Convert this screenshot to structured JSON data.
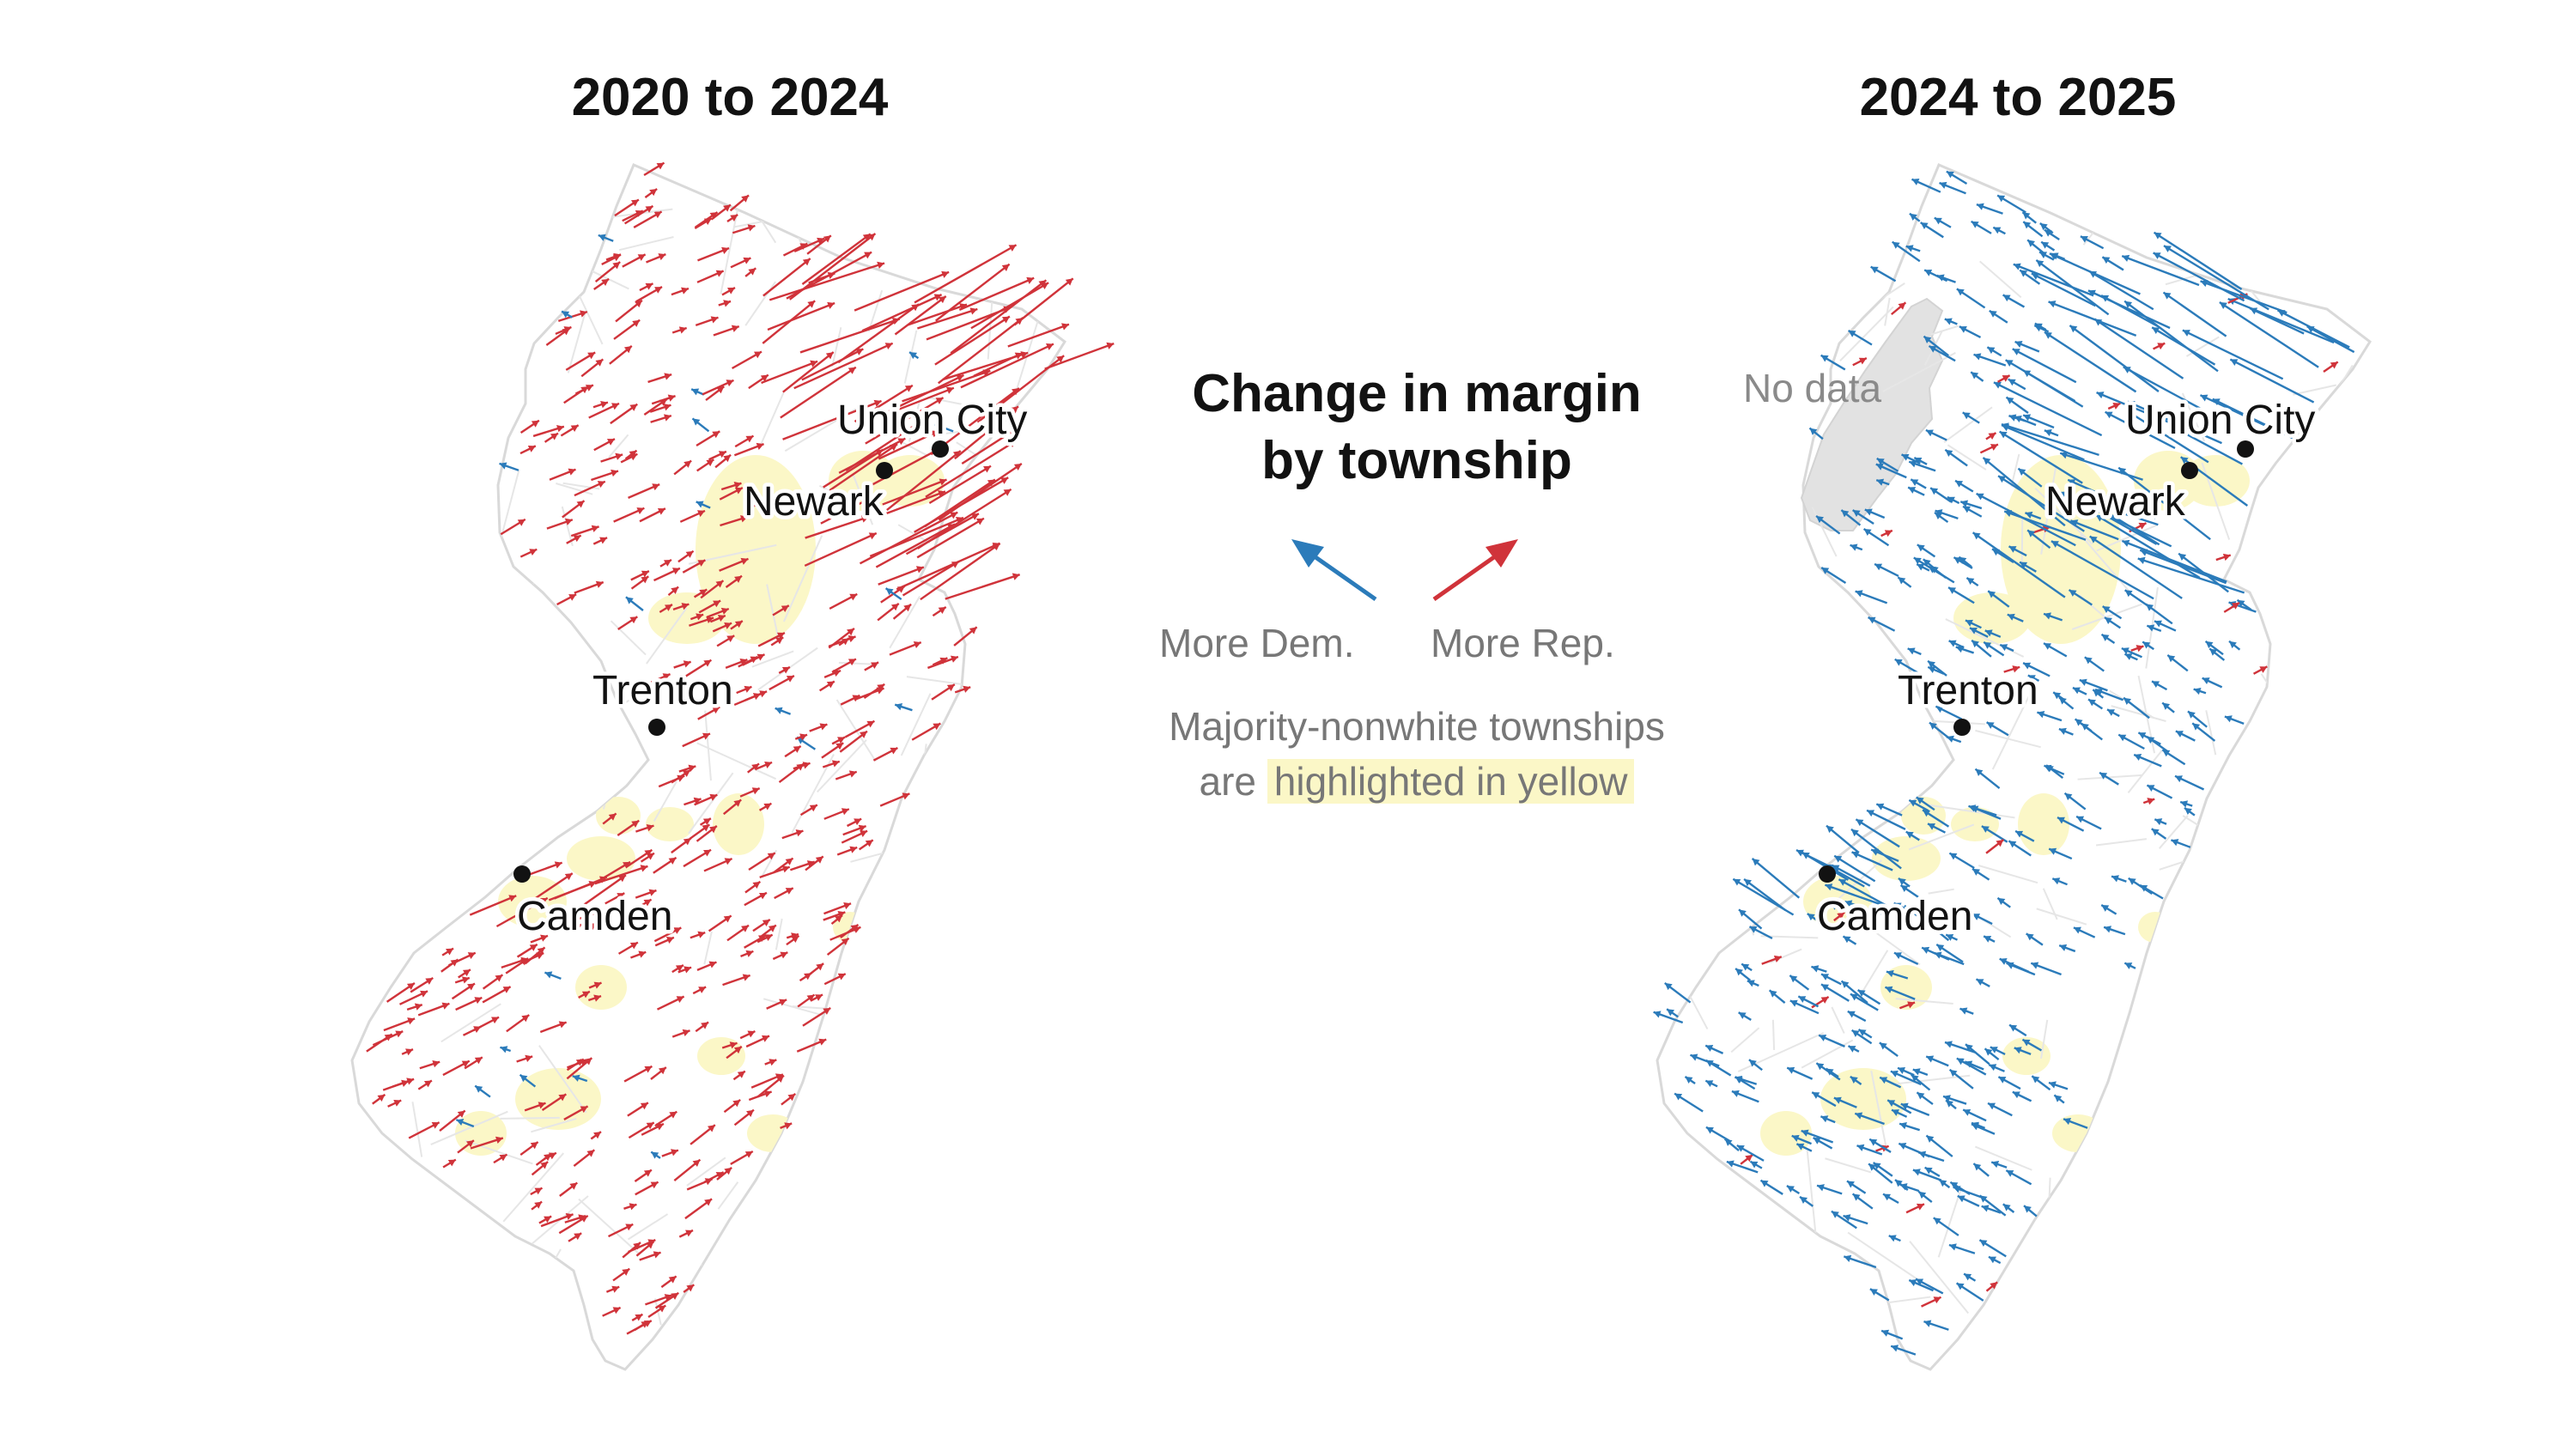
{
  "maps": [
    {
      "title": "2020 to 2024",
      "id": "left"
    },
    {
      "title": "2024 to 2025",
      "id": "right"
    }
  ],
  "cities": [
    "Union City",
    "Newark",
    "Trenton",
    "Camden"
  ],
  "no_data_label": "No data",
  "legend": {
    "title_line1": "Change in margin",
    "title_line2": "by township",
    "dem_label": "More Dem.",
    "rep_label": "More Rep.",
    "note_line1": "Majority-nonwhite townships",
    "note_line2_prefix": "are",
    "note_line2_highlight": "highlighted in yellow"
  },
  "colors": {
    "dem": "#2b7bba",
    "rep": "#d0333a",
    "highlight": "#fbf7c7",
    "no_data": "#e2e2e2",
    "border": "#d9d9d9"
  },
  "shift_direction": {
    "2020_to_2024": "Rep.",
    "2024_to_2025": "Dem."
  }
}
